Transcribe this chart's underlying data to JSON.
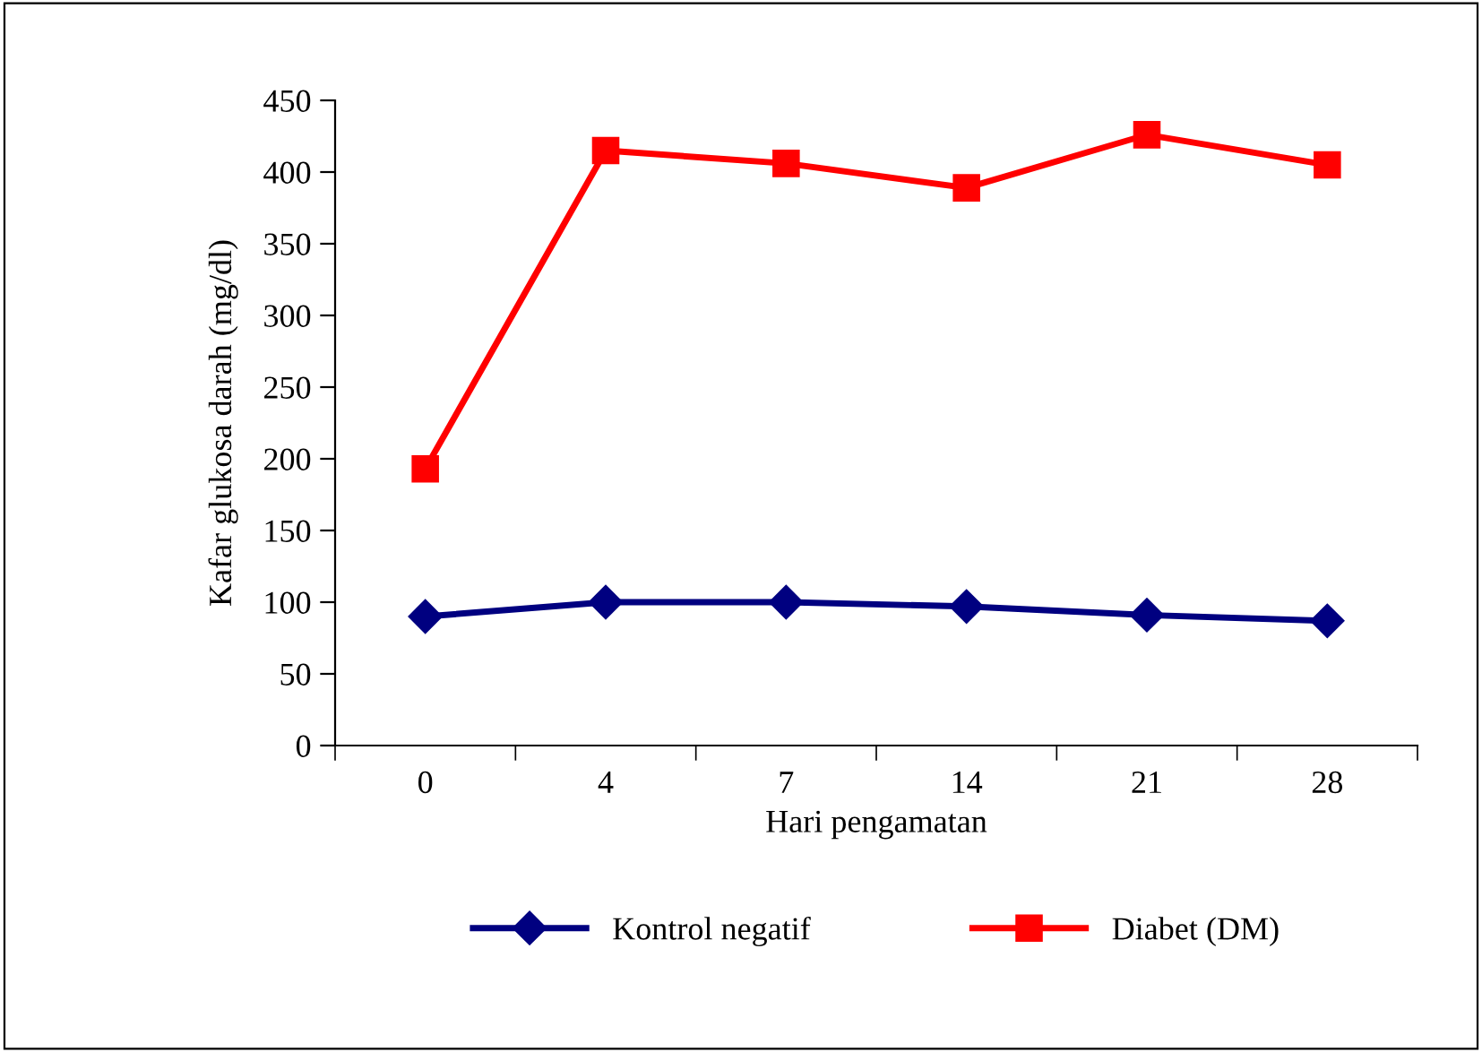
{
  "chart_data": {
    "type": "line",
    "xlabel": "Hari pengamatan",
    "ylabel": "Kafar glukosa darah (mg/dl)",
    "categories": [
      "0",
      "4",
      "7",
      "14",
      "21",
      "28"
    ],
    "series": [
      {
        "name": "Kontrol negatif",
        "color": "#000080",
        "marker": "diamond",
        "values": [
          90,
          100,
          100,
          97,
          91,
          87
        ]
      },
      {
        "name": "Diabet (DM)",
        "color": "#ff0000",
        "marker": "square",
        "values": [
          193,
          415,
          406,
          389,
          426,
          405
        ]
      }
    ],
    "ylim": [
      0,
      450
    ],
    "yticks": [
      0,
      50,
      100,
      150,
      200,
      250,
      300,
      350,
      400,
      450
    ],
    "grid": false,
    "legend": "bottom",
    "line_style": "solid"
  }
}
